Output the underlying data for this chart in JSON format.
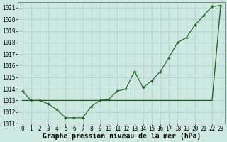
{
  "hours": [
    0,
    1,
    2,
    3,
    4,
    5,
    6,
    7,
    8,
    9,
    10,
    11,
    12,
    13,
    14,
    15,
    16,
    17,
    18,
    19,
    20,
    21,
    22,
    23
  ],
  "pressure_actual": [
    1013.8,
    1013.0,
    1013.0,
    1012.7,
    1012.2,
    1011.5,
    1011.5,
    1011.5,
    1012.5,
    1013.0,
    1013.1,
    1013.8,
    1014.0,
    1015.5,
    1014.1,
    1014.7,
    1015.5,
    1016.7,
    1018.0,
    1018.4,
    1019.5,
    1020.3,
    1021.1,
    1021.2
  ],
  "pressure_trend": [
    1013.0,
    1013.0,
    1013.0,
    1013.0,
    1013.0,
    1013.0,
    1013.0,
    1013.0,
    1013.0,
    1013.0,
    1013.0,
    1013.0,
    1013.0,
    1013.0,
    1013.0,
    1013.0,
    1013.0,
    1013.0,
    1013.0,
    1013.0,
    1013.0,
    1013.0,
    1013.0,
    1021.2
  ],
  "ylim_min": 1011,
  "ylim_max": 1021.5,
  "yticks": [
    1011,
    1012,
    1013,
    1014,
    1015,
    1016,
    1017,
    1018,
    1019,
    1020,
    1021
  ],
  "bg_color": "#cce8e0",
  "grid_color": "#aacccc",
  "line_color": "#1a5c1a",
  "marker_color": "#1a5c1a",
  "xlabel": "Graphe pression niveau de la mer (hPa)",
  "tick_label_fontsize": 5.5,
  "ylabel_fontsize": 5.5,
  "xlabel_fontsize": 7.0
}
